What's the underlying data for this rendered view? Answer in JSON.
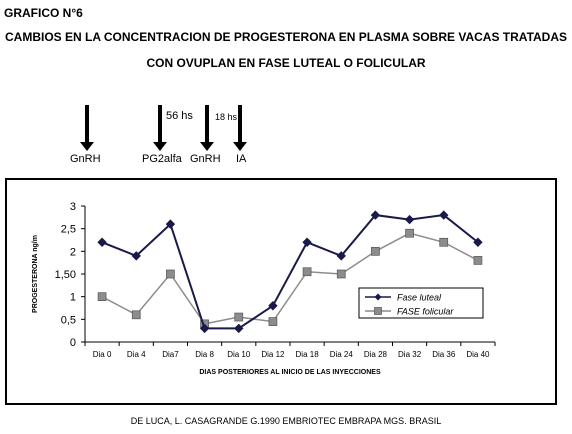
{
  "header": {
    "grafico": "GRAFICO N°6",
    "title_line1": "CAMBIOS EN LA CONCENTRACION  DE PROGESTERONA EN PLASMA SOBRE VACAS TRATADAS",
    "title_line2": "CON OVUPLAN  EN FASE LUTEAL O FOLICULAR"
  },
  "timeline": {
    "labels": [
      "GnRH",
      "PG2alfa",
      "GnRH",
      "IA"
    ],
    "interval_1": "56 hs",
    "interval_2": "18 hs"
  },
  "chart_data": {
    "type": "line",
    "categories": [
      "Dia 0",
      "Dia 4",
      "Dia7",
      "Dia 8",
      "Dia 10",
      "Dia 12",
      "Dia 18",
      "Dia 24",
      "Dia 28",
      "Dia 32",
      "Dia 36",
      "Dia 40"
    ],
    "series": [
      {
        "name": "Fase luteal",
        "color": "#1a1a4a",
        "marker": "diamond",
        "values": [
          2.2,
          1.9,
          2.6,
          0.3,
          0.3,
          0.8,
          2.2,
          1.9,
          2.8,
          2.7,
          2.8,
          2.2
        ]
      },
      {
        "name": "FASE folicular",
        "color": "#8c8c8c",
        "marker": "square",
        "values": [
          1.0,
          0.6,
          1.5,
          0.4,
          0.55,
          0.45,
          1.55,
          1.5,
          2.0,
          2.4,
          2.2,
          1.8
        ]
      }
    ],
    "ylim": [
      0,
      3
    ],
    "yticks": [
      "0",
      "0,5",
      "1",
      "1,50",
      "2",
      "2,5",
      "3"
    ],
    "ylabel": "PROGESTERONA ng/m",
    "xlabel": "DIAS POSTERIORES AL INICIO DE LAS INYECCIONES",
    "legend_position": "right",
    "grid": false
  },
  "footer": {
    "credit": "DE LUCA, L. CASAGRANDE G.1990  EMBRIOTEC  EMBRAPA  MGS. BRASIL"
  }
}
